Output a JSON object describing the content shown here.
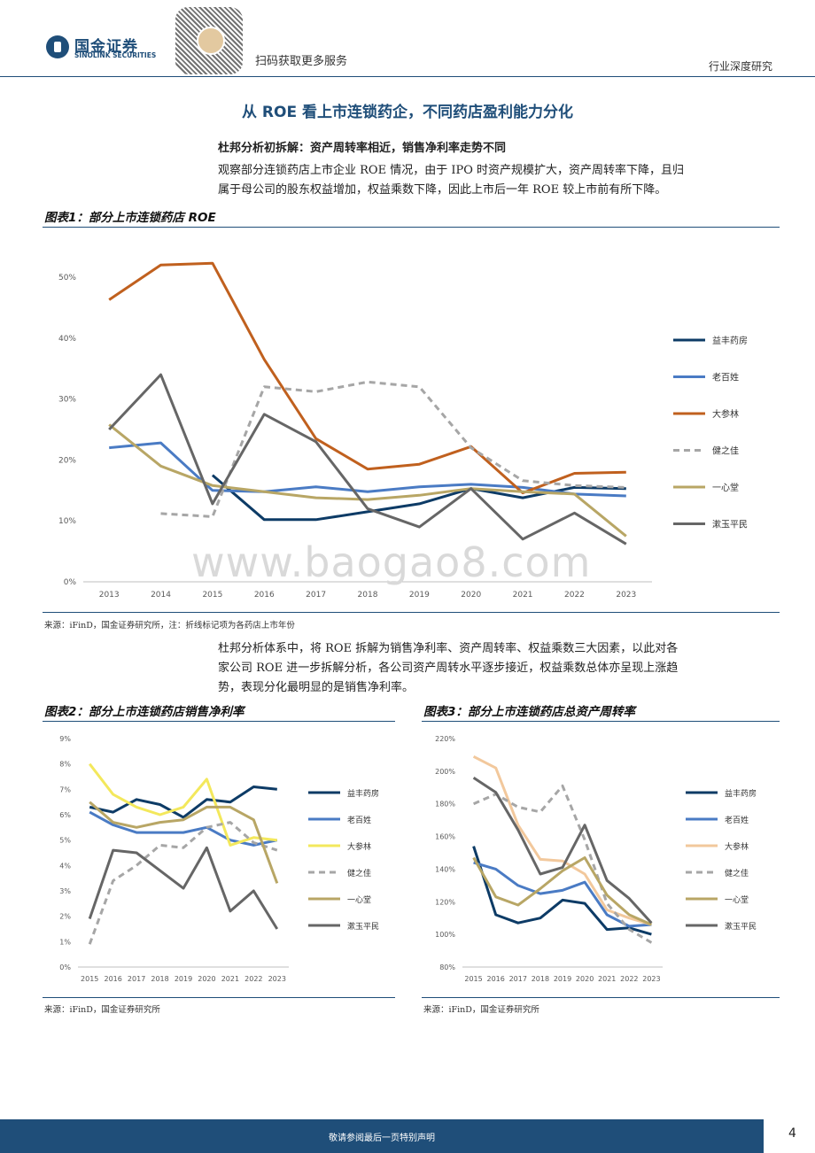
{
  "header": {
    "brand_cn": "国金证券",
    "brand_en": "SINOLINK SECURITIES",
    "scan_text": "扫码获取更多服务",
    "category": "行业深度研究"
  },
  "section": {
    "title": "从 ROE 看上市连锁药企，不同药店盈利能力分化",
    "subtitle": "杜邦分析初拆解：资产周转率相近，销售净利率走势不同",
    "para1_line1": "观察部分连锁药店上市企业 ROE 情况，由于 IPO 时资产规模扩大，资产周转率下降，且归",
    "para1_line2": "属于母公司的股东权益增加，权益乘数下降，因此上市后一年 ROE 较上市前有所下降。",
    "para2_line1": "杜邦分析体系中，将 ROE 拆解为销售净利率、资产周转率、权益乘数三大因素，以此对各",
    "para2_line2": "家公司 ROE 进一步拆解分析，各公司资产周转水平逐步接近，权益乘数总体亦呈现上涨趋",
    "para2_line3": "势，表现分化最明显的是销售净利率。"
  },
  "fig1": {
    "title": "图表1：部分上市连锁药店 ROE",
    "source": "来源：iFinD，国金证券研究所，注：折线标记项为各药店上市年份"
  },
  "fig2": {
    "title": "图表2：部分上市连锁药店销售净利率",
    "source": "来源：iFinD，国金证券研究所"
  },
  "fig3": {
    "title": "图表3：部分上市连锁药店总资产周转率",
    "source": "来源：iFinD，国金证券研究所"
  },
  "watermark": "www.baogao8.com",
  "footer": {
    "text": "敬请参阅最后一页特别声明",
    "page": "4"
  },
  "colors": {
    "brand": "#1f4e79"
  },
  "chart_data": [
    {
      "type": "line",
      "title": "部分上市连锁药店 ROE",
      "x": [
        2013,
        2014,
        2015,
        2016,
        2017,
        2018,
        2019,
        2020,
        2021,
        2022,
        2023
      ],
      "ylim": [
        0,
        50
      ],
      "yticks": [
        "0%",
        "10%",
        "20%",
        "30%",
        "40%",
        "50%"
      ],
      "legend_position": "right",
      "series": [
        {
          "name": "益丰药房",
          "color": "#0d3b66",
          "dash": false,
          "values": [
            null,
            null,
            17.5,
            10.2,
            10.2,
            11.5,
            12.8,
            15.3,
            13.8,
            15.5,
            15.3
          ]
        },
        {
          "name": "老百姓",
          "color": "#4a7bc4",
          "dash": false,
          "values": [
            22.0,
            22.8,
            15.0,
            14.8,
            15.6,
            14.8,
            15.6,
            16.0,
            15.5,
            14.4,
            14.1
          ]
        },
        {
          "name": "大参林",
          "color": "#c0601e",
          "dash": false,
          "values": [
            46.3,
            52.0,
            52.3,
            36.5,
            23.5,
            18.5,
            19.3,
            22.2,
            14.6,
            17.8,
            18.0
          ]
        },
        {
          "name": "健之佳",
          "color": "#a6a6a6",
          "dash": true,
          "values": [
            null,
            11.2,
            10.7,
            32.0,
            31.2,
            32.8,
            32.0,
            22.0,
            16.6,
            15.8,
            15.5
          ]
        },
        {
          "name": "一心堂",
          "color": "#b8a665",
          "dash": false,
          "values": [
            25.8,
            19.0,
            15.8,
            14.8,
            13.8,
            13.5,
            14.2,
            15.3,
            14.8,
            14.4,
            7.5
          ]
        },
        {
          "name": "漱玉平民",
          "color": "#666666",
          "dash": false,
          "values": [
            25.0,
            34.0,
            12.8,
            27.5,
            23.0,
            12.0,
            9.0,
            15.3,
            7.0,
            11.3,
            6.2
          ]
        }
      ]
    },
    {
      "type": "line",
      "title": "部分上市连锁药店销售净利率",
      "x": [
        2015,
        2016,
        2017,
        2018,
        2019,
        2020,
        2021,
        2022,
        2023
      ],
      "ylim": [
        0,
        9
      ],
      "yticks": [
        "0%",
        "1%",
        "2%",
        "3%",
        "4%",
        "5%",
        "6%",
        "7%",
        "8%",
        "9%"
      ],
      "legend_position": "right",
      "series": [
        {
          "name": "益丰药房",
          "color": "#0d3b66",
          "dash": false,
          "values": [
            6.3,
            6.1,
            6.6,
            6.4,
            5.9,
            6.6,
            6.5,
            7.1,
            7.0
          ]
        },
        {
          "name": "老百姓",
          "color": "#4a7bc4",
          "dash": false,
          "values": [
            6.1,
            5.6,
            5.3,
            5.3,
            5.3,
            5.5,
            5.0,
            4.8,
            5.0
          ]
        },
        {
          "name": "大参林",
          "color": "#f3e85c",
          "dash": false,
          "values": [
            8.0,
            6.8,
            6.3,
            6.0,
            6.3,
            7.4,
            4.8,
            5.1,
            5.0
          ]
        },
        {
          "name": "健之佳",
          "color": "#a6a6a6",
          "dash": true,
          "values": [
            0.9,
            3.4,
            4.0,
            4.8,
            4.7,
            5.5,
            5.7,
            4.9,
            4.6
          ]
        },
        {
          "name": "一心堂",
          "color": "#b8a665",
          "dash": false,
          "values": [
            6.5,
            5.7,
            5.5,
            5.7,
            5.8,
            6.3,
            6.3,
            5.8,
            3.3
          ]
        },
        {
          "name": "漱玉平民",
          "color": "#666666",
          "dash": false,
          "values": [
            1.9,
            4.6,
            4.5,
            3.8,
            3.1,
            4.7,
            2.2,
            3.0,
            1.5
          ]
        }
      ]
    },
    {
      "type": "line",
      "title": "部分上市连锁药店总资产周转率",
      "x": [
        2015,
        2016,
        2017,
        2018,
        2019,
        2020,
        2021,
        2022,
        2023
      ],
      "ylim": [
        80,
        220
      ],
      "yticks": [
        "80%",
        "100%",
        "120%",
        "140%",
        "160%",
        "180%",
        "200%",
        "220%"
      ],
      "legend_position": "right",
      "series": [
        {
          "name": "益丰药房",
          "color": "#0d3b66",
          "dash": false,
          "values": [
            154,
            112,
            107,
            110,
            121,
            119,
            103,
            104,
            100
          ]
        },
        {
          "name": "老百姓",
          "color": "#4a7bc4",
          "dash": false,
          "values": [
            144,
            140,
            130,
            125,
            127,
            132,
            112,
            105,
            106
          ]
        },
        {
          "name": "大参林",
          "color": "#f2c89c",
          "dash": false,
          "values": [
            209,
            202,
            167,
            146,
            145,
            137,
            115,
            110,
            106
          ]
        },
        {
          "name": "健之佳",
          "color": "#a6a6a6",
          "dash": true,
          "values": [
            180,
            186,
            178,
            175,
            191,
            158,
            119,
            103,
            95
          ]
        },
        {
          "name": "一心堂",
          "color": "#b8a665",
          "dash": false,
          "values": [
            147,
            123,
            118,
            128,
            139,
            147,
            124,
            112,
            106
          ]
        },
        {
          "name": "漱玉平民",
          "color": "#666666",
          "dash": false,
          "values": [
            196,
            187,
            164,
            137,
            141,
            167,
            133,
            122,
            107
          ]
        }
      ]
    }
  ]
}
